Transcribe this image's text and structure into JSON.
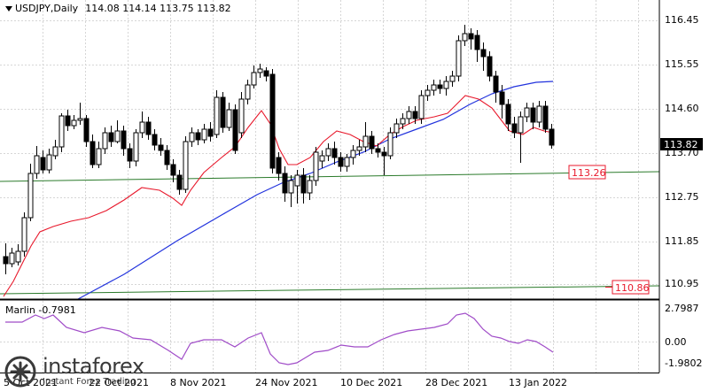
{
  "header": {
    "symbol": "USDJPY,Daily",
    "ohlc": "114.08 114.14 113.75 113.82"
  },
  "indicator": {
    "name": "Marlin",
    "value": "-0.7981"
  },
  "brand": {
    "name": "instaforex",
    "tagline": "Instant Forex Trading"
  },
  "colors": {
    "price_ma_fast": "#e8192c",
    "price_ma_slow": "#2233dd",
    "trendline": "#2a7a2a",
    "oscillator": "#a04cc8",
    "level_box": "#e8192c",
    "current_price_bg": "#000000"
  },
  "chart_data": {
    "type": "candlestick",
    "price_axis": {
      "ticks": [
        "116.45",
        "115.55",
        "114.60",
        "113.70",
        "112.75",
        "111.85",
        "110.95"
      ],
      "current_price": "113.82",
      "level_labels": [
        "113.26",
        "110.86"
      ]
    },
    "time_axis": {
      "ticks": [
        "5 Oct 2021",
        "22 Oct 2021",
        "8 Nov 2021",
        "24 Nov 2021",
        "10 Dec 2021",
        "28 Dec 2021",
        "13 Jan 2022"
      ]
    },
    "indicator_axis": {
      "ticks": [
        "2.7987",
        "0.00",
        "-1.9802"
      ]
    }
  }
}
